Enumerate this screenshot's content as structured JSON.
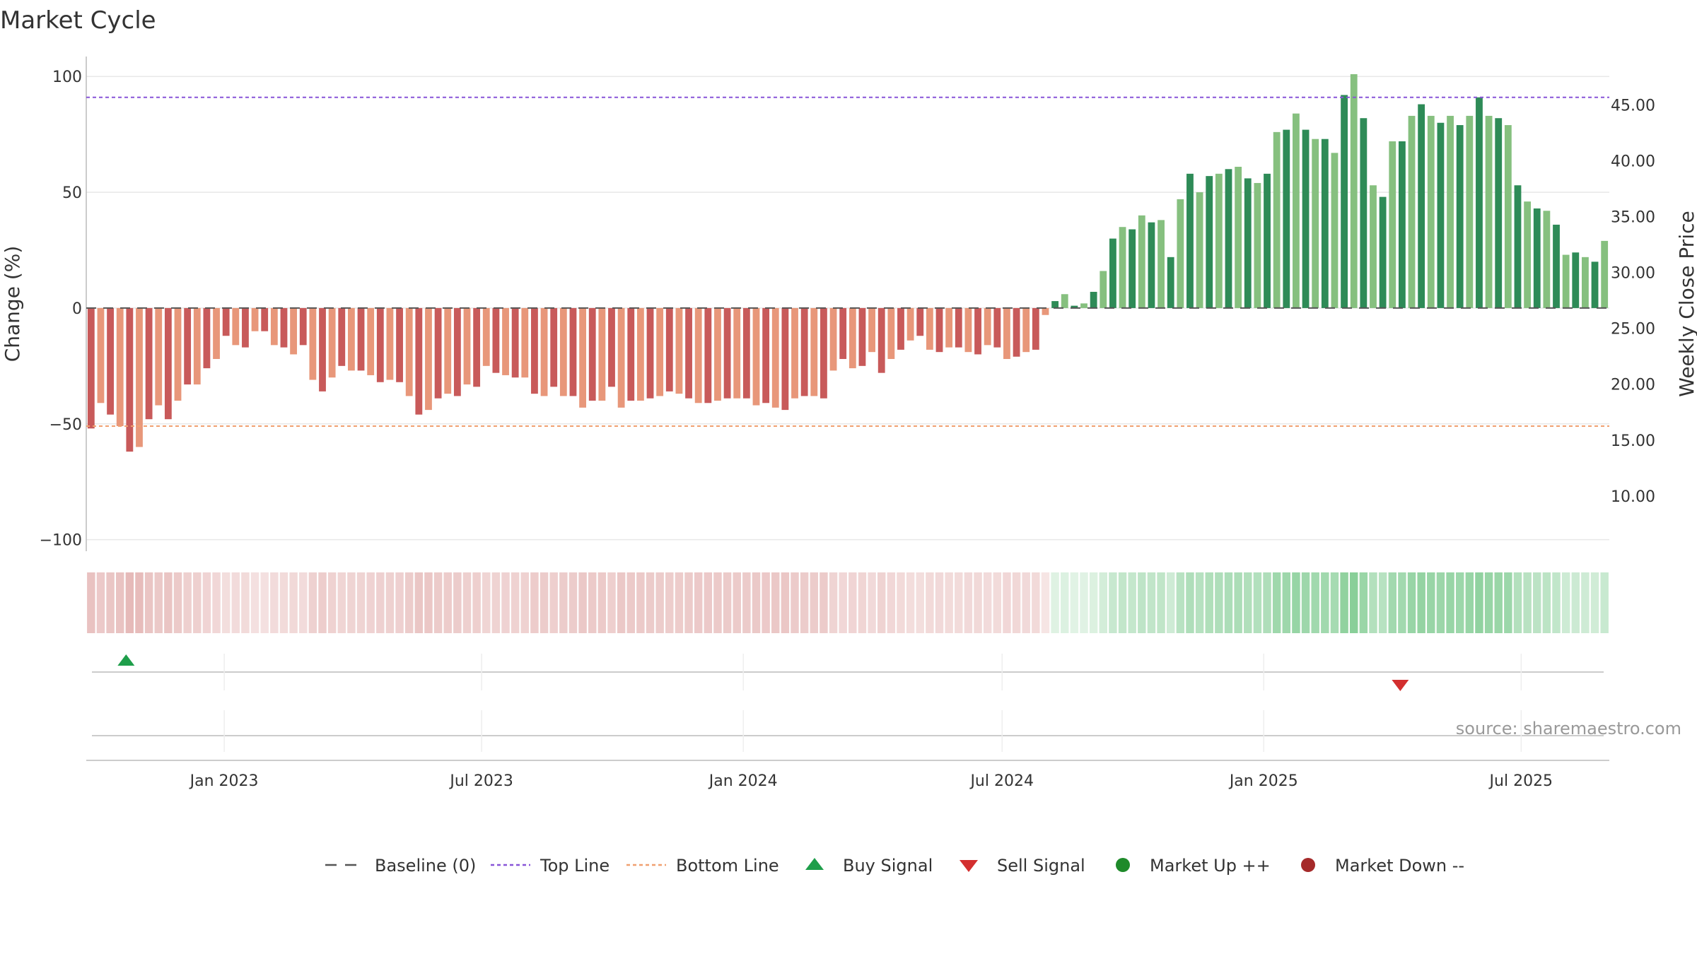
{
  "chart_data": {
    "type": "bar",
    "title": "Market Cycle",
    "ylabel": "Change (%)",
    "y2label": "Weekly Close Price",
    "ylim": [
      -105,
      108
    ],
    "yticks": [
      100,
      50,
      0,
      -50,
      -100
    ],
    "y2lim": [
      5.06,
      49.2
    ],
    "y2ticks": [
      "45.00",
      "40.00",
      "35.00",
      "30.00",
      "25.00",
      "20.00",
      "15.00",
      "10.00"
    ],
    "x_start": "2022-09-26",
    "x_end": "2025-09-01",
    "x_interval_days": 7,
    "xticks": [
      {
        "date": "2023-01-01",
        "label": "Jan 2023"
      },
      {
        "date": "2023-07-01",
        "label": "Jul 2023"
      },
      {
        "date": "2024-01-01",
        "label": "Jan 2024"
      },
      {
        "date": "2024-07-01",
        "label": "Jul 2024"
      },
      {
        "date": "2025-01-01",
        "label": "Jan 2025"
      },
      {
        "date": "2025-07-01",
        "label": "Jul 2025"
      }
    ],
    "values": [
      -52,
      -41,
      -46,
      -51,
      -62,
      -60,
      -48,
      -42,
      -48,
      -40,
      -33,
      -33,
      -26,
      -22,
      -12,
      -16,
      -17,
      -10,
      -10,
      -16,
      -17,
      -20,
      -16,
      -31,
      -36,
      -30,
      -25,
      -27,
      -27,
      -29,
      -32,
      -31,
      -32,
      -38,
      -46,
      -44,
      -39,
      -37,
      -38,
      -33,
      -34,
      -25,
      -28,
      -29,
      -30,
      -30,
      -37,
      -38,
      -34,
      -38,
      -38,
      -43,
      -40,
      -40,
      -34,
      -43,
      -40,
      -40,
      -39,
      -38,
      -36,
      -37,
      -39,
      -41,
      -41,
      -40,
      -39,
      -39,
      -39,
      -42,
      -41,
      -43,
      -44,
      -39,
      -38,
      -38,
      -39,
      -27,
      -22,
      -26,
      -25,
      -19,
      -28,
      -22,
      -18,
      -14,
      -12,
      -18,
      -19,
      -17,
      -17,
      -19,
      -20,
      -16,
      -17,
      -22,
      -21,
      -19,
      -18,
      -3,
      3,
      6,
      1,
      2,
      7,
      16,
      30,
      35,
      34,
      40,
      37,
      38,
      22,
      47,
      58,
      50,
      57,
      58,
      60,
      61,
      56,
      54,
      58,
      76,
      77,
      84,
      77,
      73,
      73,
      67,
      92,
      101,
      82,
      53,
      48,
      72,
      72,
      83,
      88,
      83,
      80,
      83,
      79,
      83,
      91,
      83,
      82,
      79,
      53,
      46,
      43,
      42,
      36,
      23,
      24,
      22,
      20,
      29
    ],
    "top_line": 91,
    "bottom_line": -51,
    "buy_signals": [
      "2022-10-24"
    ],
    "sell_signals": [
      "2025-04-07"
    ],
    "colors": {
      "neg_dark": "#c85a5a",
      "neg_light": "#e8977a",
      "pos_dark": "#2e8b57",
      "pos_light": "#86c07f",
      "top_line": "#8855d8",
      "bottom_line": "#f0a070",
      "baseline": "#555555",
      "buy": "#1e9e4a",
      "sell": "#d32f2f",
      "market_up": "#1e8a2a",
      "market_down": "#a52a2a"
    },
    "legend": [
      {
        "key": "baseline",
        "label": "Baseline (0)"
      },
      {
        "key": "top",
        "label": "Top Line"
      },
      {
        "key": "bottom",
        "label": "Bottom Line"
      },
      {
        "key": "buy",
        "label": "Buy Signal"
      },
      {
        "key": "sell",
        "label": "Sell Signal"
      },
      {
        "key": "up",
        "label": "Market Up ++"
      },
      {
        "key": "down",
        "label": "Market Down --"
      }
    ],
    "source": "source: sharemaestro.com"
  }
}
